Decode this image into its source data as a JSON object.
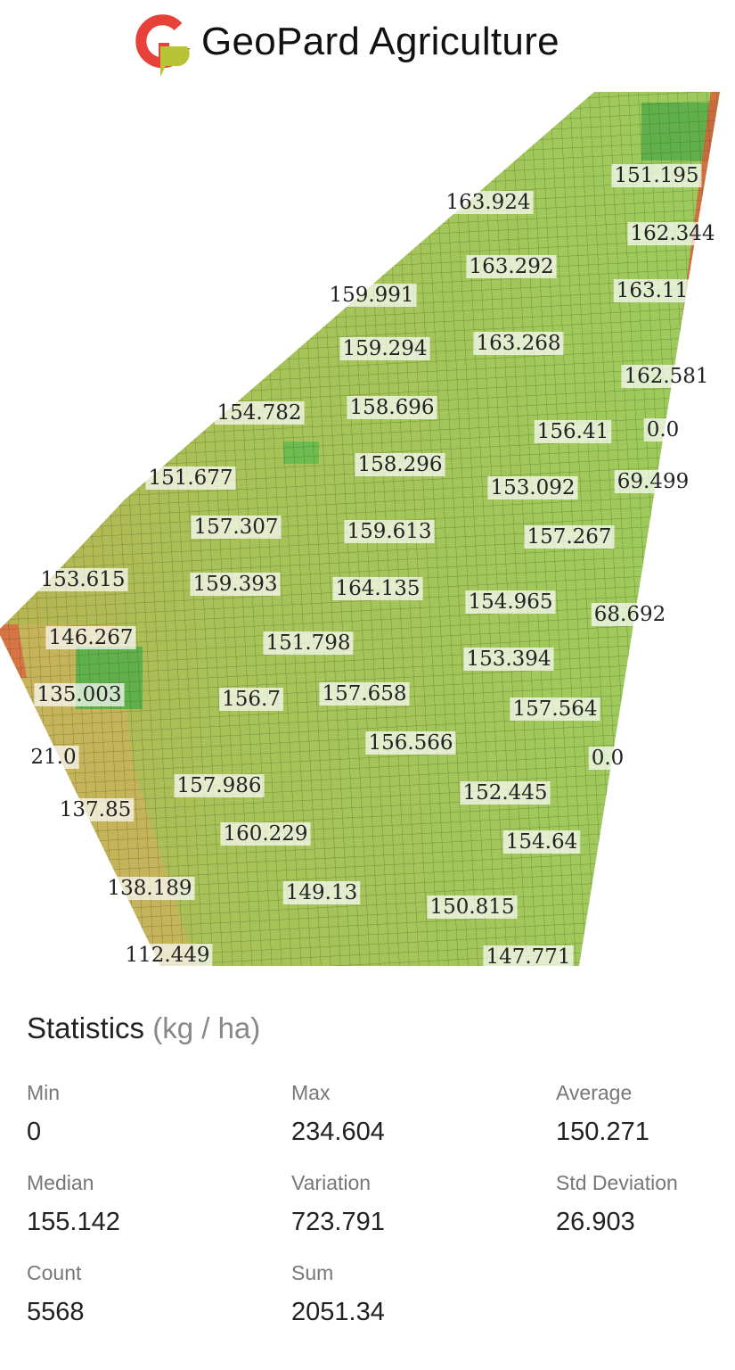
{
  "header": {
    "title": "GeoPard Agriculture"
  },
  "map": {
    "labels": [
      "163.924",
      "151.195",
      "162.344",
      "163.292",
      "159.991",
      "163.11",
      "159.294",
      "163.268",
      "162.581",
      "154.782",
      "158.696",
      "156.41",
      "0.0",
      "151.677",
      "158.296",
      "153.092",
      "69.499",
      "157.307",
      "159.613",
      "157.267",
      "153.615",
      "159.393",
      "164.135",
      "154.965",
      "68.692",
      "146.267",
      "151.798",
      "153.394",
      "135.003",
      "156.7",
      "157.658",
      "157.564",
      "21.0",
      "156.566",
      "0.0",
      "157.986",
      "152.445",
      "137.85",
      "160.229",
      "154.64",
      "138.189",
      "149.13",
      "150.815",
      "112.449",
      "147.771"
    ]
  },
  "statistics": {
    "title": "Statistics",
    "unit": "(kg / ha)",
    "items": [
      {
        "label": "Min",
        "value": "0"
      },
      {
        "label": "Max",
        "value": "234.604"
      },
      {
        "label": "Average",
        "value": "150.271"
      },
      {
        "label": "Median",
        "value": "155.142"
      },
      {
        "label": "Variation",
        "value": "723.791"
      },
      {
        "label": "Std Deviation",
        "value": "26.903"
      },
      {
        "label": "Count",
        "value": "5568"
      },
      {
        "label": "Sum",
        "value": "2051.34"
      }
    ]
  }
}
